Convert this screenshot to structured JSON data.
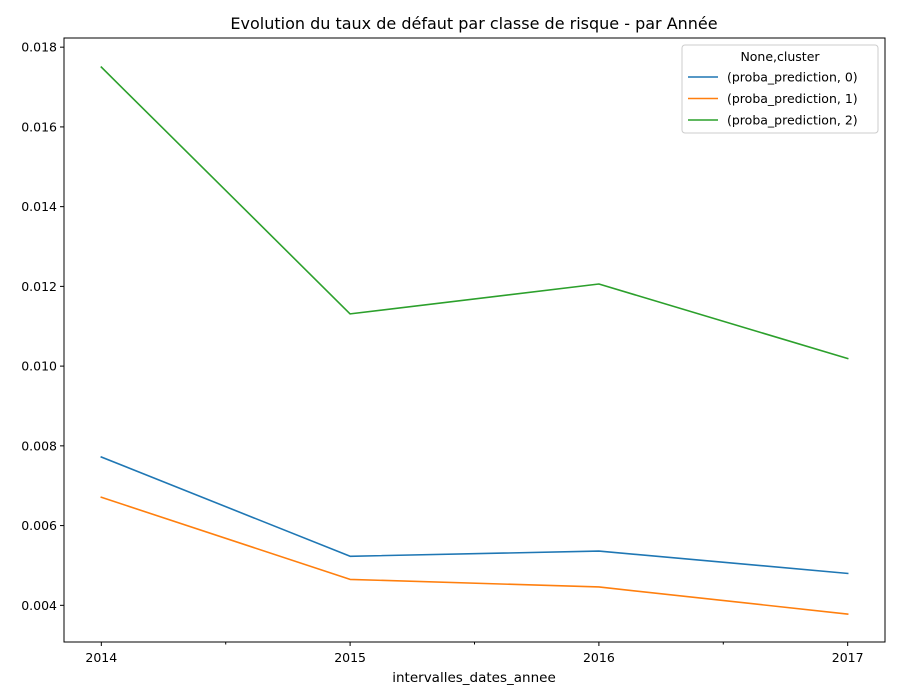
{
  "chart_data": {
    "type": "line",
    "title": "Evolution du taux de défaut par classe de risque - par Année",
    "xlabel": "intervalles_dates_annee",
    "ylabel": "",
    "x": [
      2014,
      2015,
      2016,
      2017
    ],
    "x_tick_labels": [
      "2014",
      "2015",
      "2016",
      "2017"
    ],
    "y_tick_values": [
      0.004,
      0.006,
      0.008,
      0.01,
      0.012,
      0.014,
      0.016,
      0.018
    ],
    "y_tick_labels": [
      "0.004",
      "0.006",
      "0.008",
      "0.010",
      "0.012",
      "0.014",
      "0.016",
      "0.018"
    ],
    "xlim": [
      2013.85,
      2017.15
    ],
    "ylim": [
      0.00308,
      0.01823
    ],
    "grid": false,
    "legend": {
      "title": "None,cluster",
      "position": "top-right"
    },
    "series": [
      {
        "name": "(proba_prediction, 0)",
        "color": "#1f77b4",
        "values": [
          0.00772,
          0.00523,
          0.00536,
          0.0048
        ]
      },
      {
        "name": "(proba_prediction, 1)",
        "color": "#ff7f0e",
        "values": [
          0.00671,
          0.00465,
          0.00446,
          0.00378
        ]
      },
      {
        "name": "(proba_prediction, 2)",
        "color": "#2ca02c",
        "values": [
          0.0175,
          0.01131,
          0.01206,
          0.01019
        ]
      }
    ]
  }
}
